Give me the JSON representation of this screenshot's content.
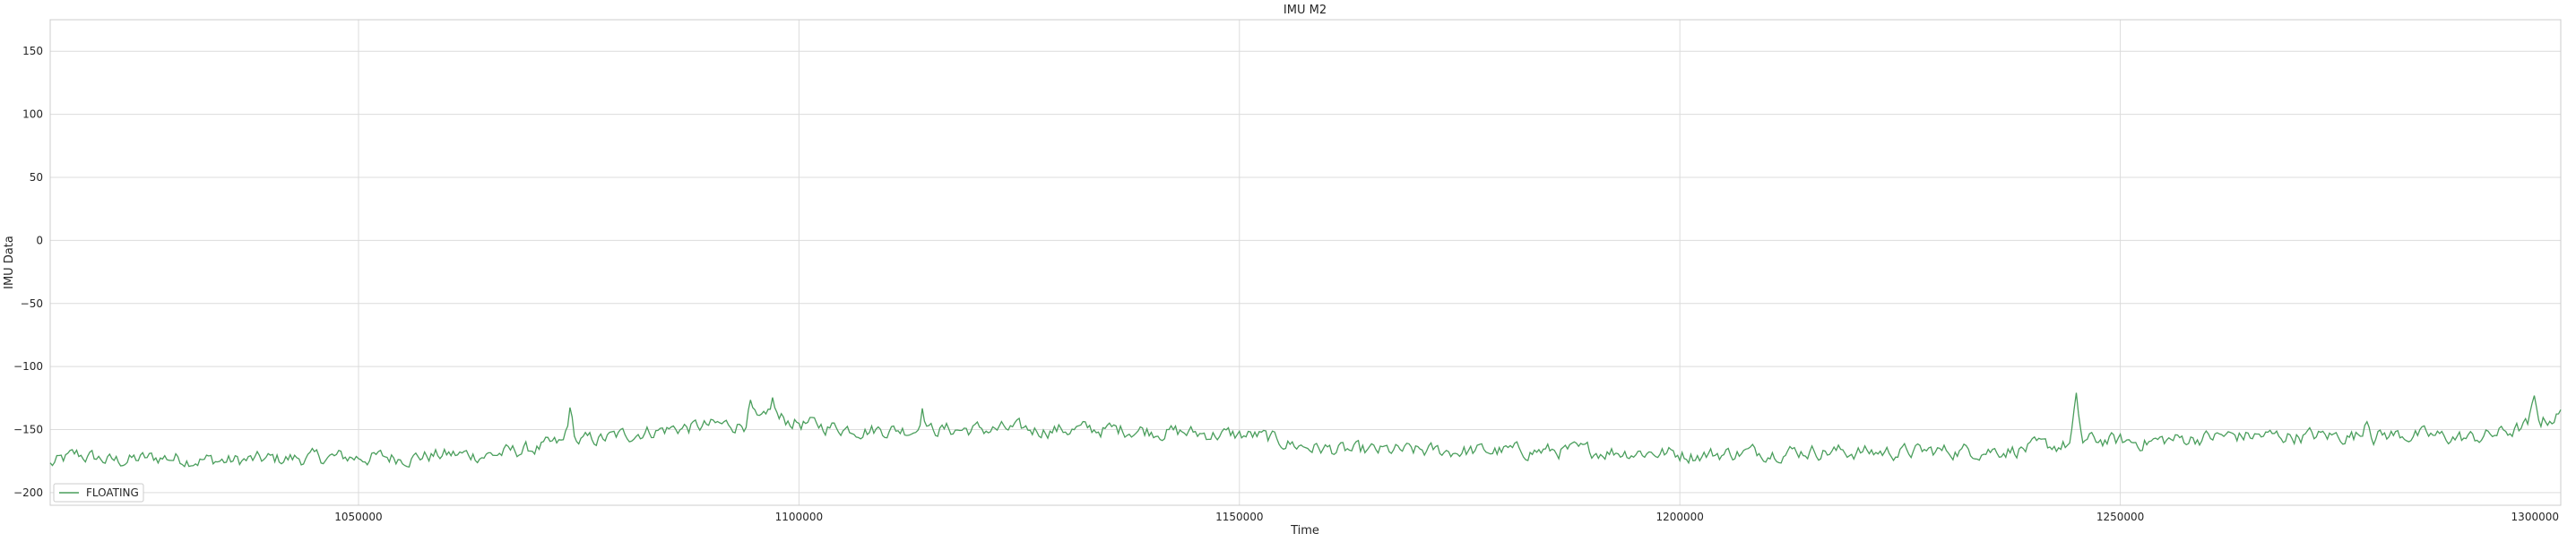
{
  "chart_data": {
    "type": "line",
    "title": "IMU M2",
    "xlabel": "Time",
    "ylabel": "IMU Data",
    "xlim": [
      1015000,
      1300000
    ],
    "ylim": [
      -210,
      175
    ],
    "xticks": [
      1050000,
      1100000,
      1150000,
      1200000,
      1250000,
      1300000
    ],
    "yticks": [
      -200,
      -150,
      -100,
      -50,
      0,
      50,
      100,
      150
    ],
    "xtick_labels": [
      "1050000",
      "1100000",
      "1150000",
      "1200000",
      "1250000",
      "1300000"
    ],
    "ytick_labels": [
      "−200",
      "−150",
      "−100",
      "−50",
      "0",
      "50",
      "100",
      "150"
    ],
    "grid": true,
    "legend": "lower-left",
    "series": [
      {
        "name": "FLOATING",
        "color": "#4a9e5c",
        "x_step": 250,
        "anchors": [
          [
            1015000,
            -178
          ],
          [
            1018000,
            -170
          ],
          [
            1022000,
            -175
          ],
          [
            1028000,
            -172
          ],
          [
            1035000,
            -175
          ],
          [
            1042000,
            -173
          ],
          [
            1048000,
            -172
          ],
          [
            1055000,
            -172
          ],
          [
            1060000,
            -170
          ],
          [
            1065000,
            -170
          ],
          [
            1070000,
            -165
          ],
          [
            1074000,
            -160
          ],
          [
            1078000,
            -157
          ],
          [
            1082000,
            -152
          ],
          [
            1086000,
            -149
          ],
          [
            1090000,
            -147
          ],
          [
            1095000,
            -145
          ],
          [
            1098000,
            -142
          ],
          [
            1102000,
            -147
          ],
          [
            1108000,
            -150
          ],
          [
            1115000,
            -150
          ],
          [
            1122000,
            -150
          ],
          [
            1130000,
            -150
          ],
          [
            1138000,
            -150
          ],
          [
            1145000,
            -153
          ],
          [
            1152000,
            -155
          ],
          [
            1157000,
            -163
          ],
          [
            1162000,
            -167
          ],
          [
            1168000,
            -167
          ],
          [
            1175000,
            -167
          ],
          [
            1182000,
            -167
          ],
          [
            1190000,
            -167
          ],
          [
            1197000,
            -168
          ],
          [
            1202000,
            -170
          ],
          [
            1208000,
            -168
          ],
          [
            1215000,
            -167
          ],
          [
            1222000,
            -168
          ],
          [
            1230000,
            -167
          ],
          [
            1238000,
            -166
          ],
          [
            1244000,
            -162
          ],
          [
            1247000,
            -158
          ],
          [
            1252000,
            -160
          ],
          [
            1256000,
            -158
          ],
          [
            1262000,
            -155
          ],
          [
            1268000,
            -155
          ],
          [
            1275000,
            -155
          ],
          [
            1282000,
            -154
          ],
          [
            1290000,
            -157
          ],
          [
            1295000,
            -150
          ],
          [
            1300000,
            -138
          ]
        ],
        "spikes": [
          [
            1074000,
            -135
          ],
          [
            1094500,
            -130
          ],
          [
            1097000,
            -127
          ],
          [
            1114000,
            -133
          ],
          [
            1245000,
            -128
          ],
          [
            1278000,
            -138
          ],
          [
            1297000,
            -128
          ]
        ],
        "noise_amplitude": 7
      }
    ]
  }
}
